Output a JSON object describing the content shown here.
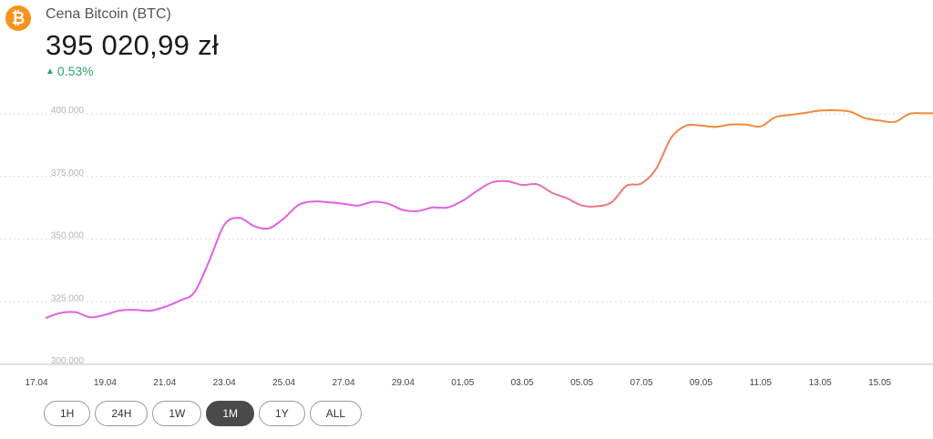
{
  "header": {
    "logo_glyph": "₿",
    "asset_name": "Cena Bitcoin (BTC)",
    "price": "395 020,99 zł",
    "change_icon": "triangle-up-icon",
    "change": "0.53%",
    "change_color": "#2fa46f"
  },
  "chart_data": {
    "type": "line",
    "title": "",
    "xlabel": "",
    "ylabel": "",
    "ylim": [
      300000,
      400000
    ],
    "y_ticks": [
      400000,
      375000,
      350000,
      325000,
      300000
    ],
    "y_tick_labels": [
      "400.000",
      "375.000",
      "350.000",
      "325.000",
      "300.000"
    ],
    "x_ticks": [
      "17.04",
      "19.04",
      "21.04",
      "23.04",
      "25.04",
      "27.04",
      "29.04",
      "01.05",
      "03.05",
      "05.05",
      "07.05",
      "09.05",
      "11.05",
      "13.05",
      "15.05"
    ],
    "grid": true,
    "gradient_colors": [
      "#e35ee8",
      "#f08a3a"
    ],
    "series": [
      {
        "x": [
          "17.04",
          "17.5",
          "18.04",
          "18.5",
          "19.04",
          "19.5",
          "20.04",
          "20.5",
          "21.04",
          "21.5",
          "22.04",
          "22.5",
          "23.04",
          "23.5",
          "24.04",
          "24.5",
          "25.04",
          "25.5",
          "26.04",
          "26.5",
          "27.04",
          "27.5",
          "28.04",
          "28.5",
          "29.04",
          "29.5",
          "30.04",
          "30.5",
          "01.05",
          "01.5",
          "02.05",
          "02.5",
          "03.05",
          "03.5",
          "04.05",
          "04.5",
          "05.05",
          "05.5",
          "06.05",
          "06.5",
          "07.05",
          "07.5",
          "08.05",
          "08.5",
          "09.05",
          "09.5",
          "10.05",
          "10.5",
          "11.05",
          "11.5",
          "12.05",
          "12.5",
          "13.05",
          "13.5",
          "14.05",
          "14.5",
          "15.05",
          "15.5",
          "16.05",
          "16.5"
        ],
        "values": [
          318500,
          320500,
          320800,
          318800,
          319800,
          321500,
          321700,
          321400,
          322900,
          325400,
          328800,
          341500,
          355700,
          358500,
          355200,
          354300,
          358300,
          363700,
          365000,
          364700,
          364100,
          363400,
          364900,
          364100,
          361600,
          361200,
          362600,
          362600,
          365300,
          369400,
          372700,
          373100,
          371600,
          371900,
          368500,
          366300,
          363400,
          363100,
          364700,
          371300,
          372200,
          378200,
          390500,
          395300,
          395300,
          394800,
          395700,
          395700,
          395000,
          398700,
          399600,
          400400,
          401300,
          401400,
          400900,
          398300,
          397300,
          396800,
          400000,
          400200
        ]
      }
    ]
  },
  "range_buttons": [
    {
      "label": "1H",
      "active": false
    },
    {
      "label": "24H",
      "active": false
    },
    {
      "label": "1W",
      "active": false
    },
    {
      "label": "1M",
      "active": true
    },
    {
      "label": "1Y",
      "active": false
    },
    {
      "label": "ALL",
      "active": false
    }
  ]
}
